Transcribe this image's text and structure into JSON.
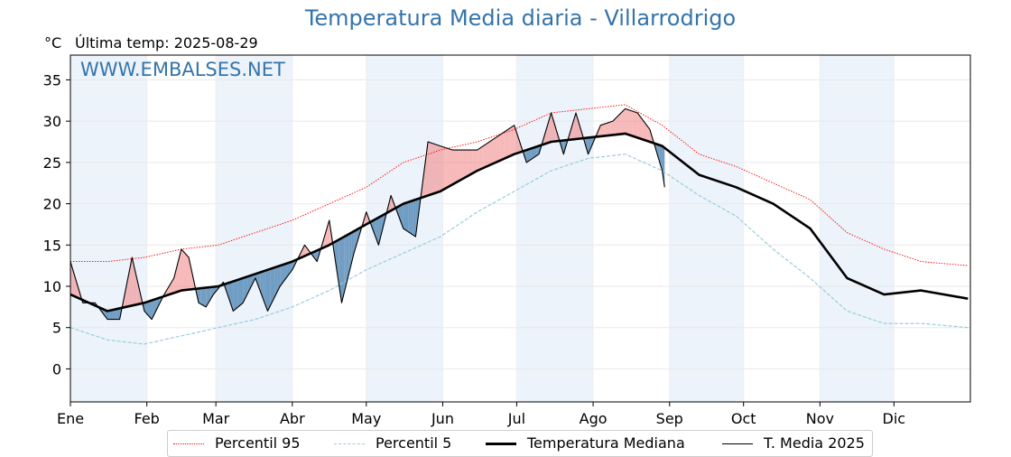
{
  "title": "Temperatura Media diaria - Villarrodrigo",
  "unit_label": "°C",
  "last_temp_label": "Última temp: 2025-08-29",
  "watermark": "WWW.EMBALSES.NET",
  "colors": {
    "title": "#3474aa",
    "p95": "#ff0000",
    "p5": "#99ccdd",
    "median": "#000000",
    "media2025": "#000000",
    "above": "#f08080",
    "below": "#5b8db8",
    "band": "#dceaf6"
  },
  "chart_data": {
    "type": "line",
    "title": "Temperatura Media diaria - Villarrodrigo",
    "ylabel": "°C",
    "ylim": [
      -4,
      38
    ],
    "yticks": [
      0,
      5,
      10,
      15,
      20,
      25,
      30,
      35
    ],
    "months": [
      "Ene",
      "Feb",
      "Mar",
      "Abr",
      "May",
      "Jun",
      "Jul",
      "Ago",
      "Sep",
      "Oct",
      "Nov",
      "Dic"
    ],
    "xlim_days": [
      0,
      365
    ],
    "legend_position": "bottom",
    "grid": true,
    "series": [
      {
        "name": "Percentil 95",
        "style": "red-dotted",
        "days": [
          0,
          15,
          30,
          45,
          60,
          75,
          90,
          105,
          120,
          135,
          150,
          165,
          180,
          195,
          210,
          225,
          240,
          255,
          270,
          285,
          300,
          315,
          330,
          345,
          364
        ],
        "values": [
          13,
          13,
          13.5,
          14.5,
          15,
          16.5,
          18,
          20,
          22,
          25,
          26.5,
          27.5,
          29,
          31,
          31.5,
          32,
          29.5,
          26,
          24.5,
          22.5,
          20.5,
          16.5,
          14.5,
          13,
          12.5
        ]
      },
      {
        "name": "Percentil 5",
        "style": "lightblue-dashed",
        "days": [
          0,
          15,
          30,
          45,
          60,
          75,
          90,
          105,
          120,
          135,
          150,
          165,
          180,
          195,
          210,
          225,
          240,
          255,
          270,
          285,
          300,
          315,
          330,
          345,
          364
        ],
        "values": [
          5,
          3.5,
          3,
          4,
          5,
          6,
          7.5,
          9.5,
          12,
          14,
          16,
          19,
          21.5,
          24,
          25.5,
          26,
          24,
          21,
          18.5,
          14.5,
          11,
          7,
          5.5,
          5.5,
          5
        ]
      },
      {
        "name": "Temperatura Mediana",
        "style": "black-thick",
        "days": [
          0,
          15,
          30,
          45,
          60,
          75,
          90,
          105,
          120,
          135,
          150,
          165,
          180,
          195,
          210,
          225,
          240,
          255,
          270,
          285,
          300,
          315,
          330,
          345,
          364
        ],
        "values": [
          9,
          7,
          8,
          9.5,
          10,
          11.5,
          13,
          15,
          17.5,
          20,
          21.5,
          24,
          26,
          27.5,
          28,
          28.5,
          27,
          23.5,
          22,
          20,
          17,
          11,
          9,
          9.5,
          8.5
        ]
      },
      {
        "name": "T. Media 2025",
        "style": "black-thin",
        "days": [
          0,
          5,
          10,
          15,
          20,
          25,
          30,
          33,
          38,
          42,
          45,
          48,
          52,
          55,
          58,
          62,
          66,
          70,
          75,
          80,
          85,
          90,
          95,
          100,
          105,
          110,
          115,
          120,
          125,
          130,
          135,
          140,
          145,
          150,
          155,
          160,
          165,
          180,
          185,
          190,
          195,
          200,
          205,
          210,
          215,
          220,
          225,
          230,
          235,
          240,
          241
        ],
        "values": [
          13,
          8,
          8,
          6,
          6,
          13.5,
          7,
          6,
          9,
          11,
          14.5,
          13.5,
          8,
          7.5,
          9,
          10.5,
          7,
          8,
          11,
          7,
          10,
          12,
          15,
          13,
          18,
          8,
          14,
          19,
          15,
          21,
          17,
          16,
          27.5,
          27,
          26.5,
          26.5,
          26.5,
          29.5,
          25,
          26,
          31,
          26,
          31,
          26,
          29.5,
          30,
          31.5,
          31,
          29,
          24,
          22
        ]
      }
    ]
  }
}
